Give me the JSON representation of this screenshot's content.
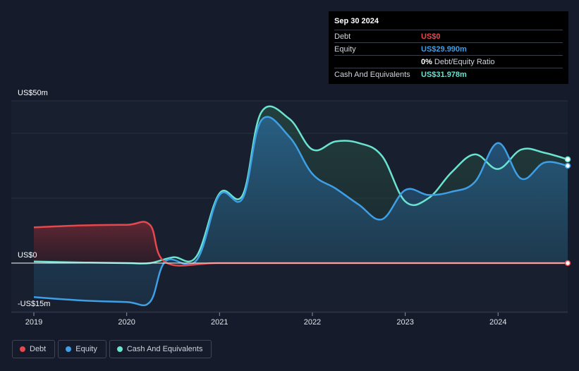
{
  "tooltip": {
    "date": "Sep 30 2024",
    "rows": [
      {
        "label": "Debt",
        "value": "US$0",
        "color": "#e5484d",
        "suffix": ""
      },
      {
        "label": "Equity",
        "value": "US$29.990m",
        "color": "#3e9fe6",
        "suffix": ""
      },
      {
        "label": "",
        "value": "0%",
        "color": "#ffffff",
        "suffix": "Debt/Equity Ratio"
      },
      {
        "label": "Cash And Equivalents",
        "value": "US$31.978m",
        "color": "#6ae3d0",
        "suffix": ""
      }
    ]
  },
  "legend": [
    {
      "label": "Debt",
      "color": "#e5484d"
    },
    {
      "label": "Equity",
      "color": "#3e9fe6"
    },
    {
      "label": "Cash And Equivalents",
      "color": "#6ae3d0"
    }
  ],
  "chart_data": {
    "type": "area",
    "y_tick_labels": [
      "US$50m",
      "US$0",
      "-US$15m"
    ],
    "ylim": [
      -15,
      50
    ],
    "x_ticks": [
      2019,
      2020,
      2021,
      2022,
      2023,
      2024
    ],
    "x_tick_labels": [
      "2019",
      "2020",
      "2021",
      "2022",
      "2023",
      "2024"
    ],
    "xlim": [
      2019.0,
      2024.75
    ],
    "series": [
      {
        "name": "Debt",
        "color": "#e5484d",
        "points": [
          [
            2019.0,
            11.0
          ],
          [
            2019.5,
            11.6
          ],
          [
            2020.0,
            11.8
          ],
          [
            2020.25,
            11.8
          ],
          [
            2020.42,
            0.2
          ],
          [
            2021.0,
            0
          ],
          [
            2022.0,
            0
          ],
          [
            2023.0,
            0
          ],
          [
            2024.0,
            0
          ],
          [
            2024.75,
            0
          ]
        ]
      },
      {
        "name": "Equity",
        "color": "#3e9fe6",
        "points": [
          [
            2019.0,
            -10.5
          ],
          [
            2019.5,
            -11.5
          ],
          [
            2020.0,
            -12.0
          ],
          [
            2020.25,
            -12.0
          ],
          [
            2020.42,
            0.6
          ],
          [
            2020.75,
            0.8
          ],
          [
            2021.0,
            21.0
          ],
          [
            2021.25,
            20.0
          ],
          [
            2021.45,
            44.0
          ],
          [
            2021.75,
            39.0
          ],
          [
            2022.0,
            27.5
          ],
          [
            2022.25,
            23.0
          ],
          [
            2022.5,
            18.0
          ],
          [
            2022.75,
            13.5
          ],
          [
            2023.0,
            22.5
          ],
          [
            2023.25,
            21.0
          ],
          [
            2023.5,
            22.0
          ],
          [
            2023.75,
            25.0
          ],
          [
            2024.0,
            37.0
          ],
          [
            2024.25,
            26.0
          ],
          [
            2024.5,
            31.0
          ],
          [
            2024.75,
            29.99
          ]
        ]
      },
      {
        "name": "Cash And Equivalents",
        "color": "#6ae3d0",
        "points": [
          [
            2019.0,
            0.5
          ],
          [
            2019.5,
            0.2
          ],
          [
            2020.0,
            0.0
          ],
          [
            2020.25,
            0.0
          ],
          [
            2020.5,
            1.8
          ],
          [
            2020.75,
            2.0
          ],
          [
            2021.0,
            21.5
          ],
          [
            2021.25,
            21.0
          ],
          [
            2021.45,
            46.5
          ],
          [
            2021.75,
            44.5
          ],
          [
            2022.0,
            35.0
          ],
          [
            2022.25,
            37.5
          ],
          [
            2022.5,
            37.0
          ],
          [
            2022.75,
            33.0
          ],
          [
            2023.0,
            19.0
          ],
          [
            2023.25,
            20.0
          ],
          [
            2023.5,
            28.0
          ],
          [
            2023.75,
            33.5
          ],
          [
            2024.0,
            29.0
          ],
          [
            2024.25,
            35.0
          ],
          [
            2024.5,
            34.0
          ],
          [
            2024.75,
            31.978
          ]
        ]
      }
    ]
  }
}
